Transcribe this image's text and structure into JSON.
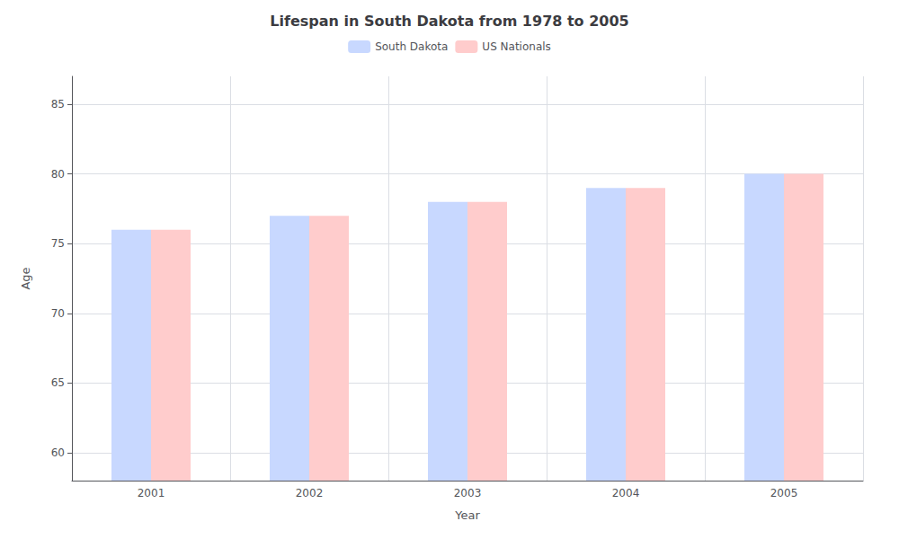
{
  "chart_data": {
    "type": "bar",
    "title": "Lifespan in South Dakota from 1978 to 2005",
    "x_label": "Year",
    "y_label": "Age",
    "categories": [
      "2001",
      "2002",
      "2003",
      "2004",
      "2005"
    ],
    "series": [
      {
        "name": "South Dakota",
        "color": "#c8d8ff",
        "values": [
          76,
          77,
          78,
          79,
          80
        ]
      },
      {
        "name": "US Nationals",
        "color": "#ffcccc",
        "values": [
          76,
          77,
          78,
          79,
          80
        ]
      }
    ],
    "ylim": [
      58,
      87
    ],
    "yticks": [
      60,
      65,
      70,
      75,
      80,
      85
    ],
    "grid": true,
    "legend": "top"
  }
}
